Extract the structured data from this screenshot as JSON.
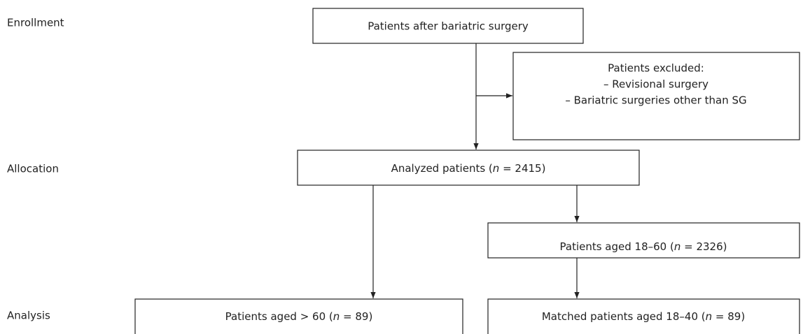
{
  "stages": [
    "Enrollment",
    "Allocation",
    "Analysis"
  ],
  "nodes": [
    {
      "label": "Patients after bariatric surgery"
    },
    {
      "lines": [
        "Patients excluded:",
        "– Revisional surgery",
        "– Bariatric surgeries other than SG"
      ]
    },
    {
      "parts": [
        "Analyzed patients (",
        "n",
        " = 2415)"
      ]
    },
    {
      "parts": [
        "Patients aged 18–60 (",
        "n",
        " = 2326)"
      ]
    },
    {
      "parts": [
        "Patients aged > 60 (",
        "n",
        " = 89)"
      ]
    },
    {
      "parts": [
        "Matched patients aged 18–40 (",
        "n",
        " = 89)"
      ]
    }
  ]
}
